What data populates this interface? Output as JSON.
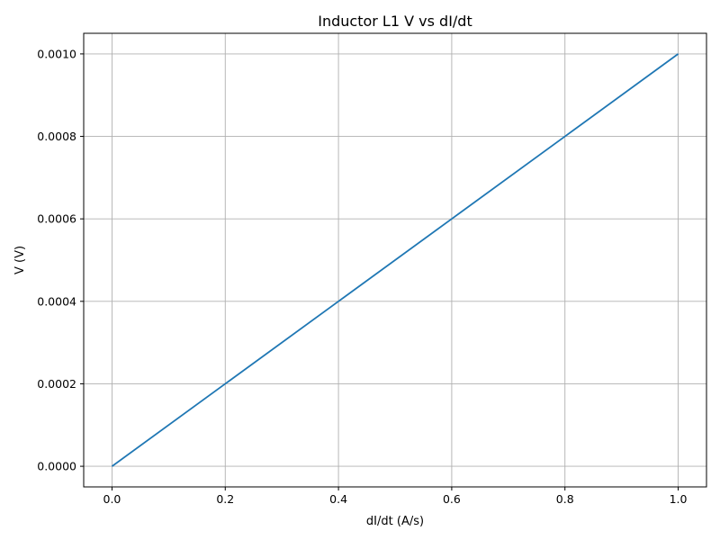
{
  "chart_data": {
    "type": "line",
    "title": "Inductor L1 V vs dI/dt",
    "xlabel": "dI/dt (A/s)",
    "ylabel": "V (V)",
    "xlim": [
      -0.05,
      1.05
    ],
    "ylim": [
      -5e-05,
      0.00105
    ],
    "xticks": [
      0.0,
      0.2,
      0.4,
      0.6,
      0.8,
      1.0
    ],
    "xtick_labels": [
      "0.0",
      "0.2",
      "0.4",
      "0.6",
      "0.8",
      "1.0"
    ],
    "yticks": [
      0.0,
      0.0002,
      0.0004,
      0.0006,
      0.0008,
      0.001
    ],
    "ytick_labels": [
      "0.0000",
      "0.0002",
      "0.0004",
      "0.0006",
      "0.0008",
      "0.0010"
    ],
    "grid": true,
    "series": [
      {
        "name": "V",
        "color": "#1f77b4",
        "x": [
          0.0,
          0.2,
          0.4,
          0.6,
          0.8,
          1.0
        ],
        "y": [
          0.0,
          0.0002,
          0.0004,
          0.0006,
          0.0008,
          0.001
        ]
      }
    ]
  }
}
